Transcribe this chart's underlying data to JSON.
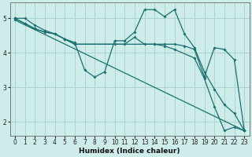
{
  "xlabel": "Humidex (Indice chaleur)",
  "background_color": "#ceecea",
  "grid_color": "#aed4d0",
  "line_color": "#1a7070",
  "xlim": [
    -0.5,
    23.5
  ],
  "ylim": [
    1.6,
    5.45
  ],
  "xticks": [
    0,
    1,
    2,
    3,
    4,
    5,
    6,
    7,
    8,
    9,
    10,
    11,
    12,
    13,
    14,
    15,
    16,
    17,
    18,
    19,
    20,
    21,
    22,
    23
  ],
  "yticks": [
    2,
    3,
    4,
    5
  ],
  "lines": [
    {
      "x": [
        0,
        1,
        2,
        3,
        4,
        5,
        6,
        7,
        8,
        9,
        10,
        11,
        12,
        13,
        14,
        15,
        16,
        17,
        18,
        19,
        20,
        21,
        22,
        23
      ],
      "y": [
        5.0,
        5.0,
        4.8,
        4.65,
        4.55,
        4.4,
        4.3,
        3.5,
        3.3,
        3.45,
        4.35,
        4.35,
        4.6,
        5.25,
        5.25,
        5.05,
        5.25,
        4.55,
        4.15,
        3.45,
        2.95,
        2.5,
        2.25,
        1.75
      ]
    },
    {
      "x": [
        0,
        1,
        2,
        3,
        4,
        5,
        6,
        10,
        11,
        12,
        13,
        14,
        15,
        16,
        17,
        18,
        19,
        20,
        21,
        22,
        23
      ],
      "y": [
        5.0,
        4.85,
        4.7,
        4.6,
        4.55,
        4.4,
        4.25,
        4.25,
        4.25,
        4.45,
        4.25,
        4.25,
        4.25,
        4.25,
        4.2,
        4.1,
        3.3,
        4.15,
        4.1,
        3.8,
        1.75
      ]
    },
    {
      "x": [
        0,
        23
      ],
      "y": [
        4.95,
        1.75
      ]
    },
    {
      "x": [
        0,
        1,
        2,
        3,
        4,
        5,
        6,
        14,
        15,
        16,
        18,
        19,
        20,
        21,
        22,
        23
      ],
      "y": [
        5.0,
        4.85,
        4.7,
        4.6,
        4.55,
        4.4,
        4.25,
        4.25,
        4.2,
        4.1,
        3.85,
        3.25,
        2.45,
        1.75,
        1.85,
        1.75
      ]
    }
  ]
}
